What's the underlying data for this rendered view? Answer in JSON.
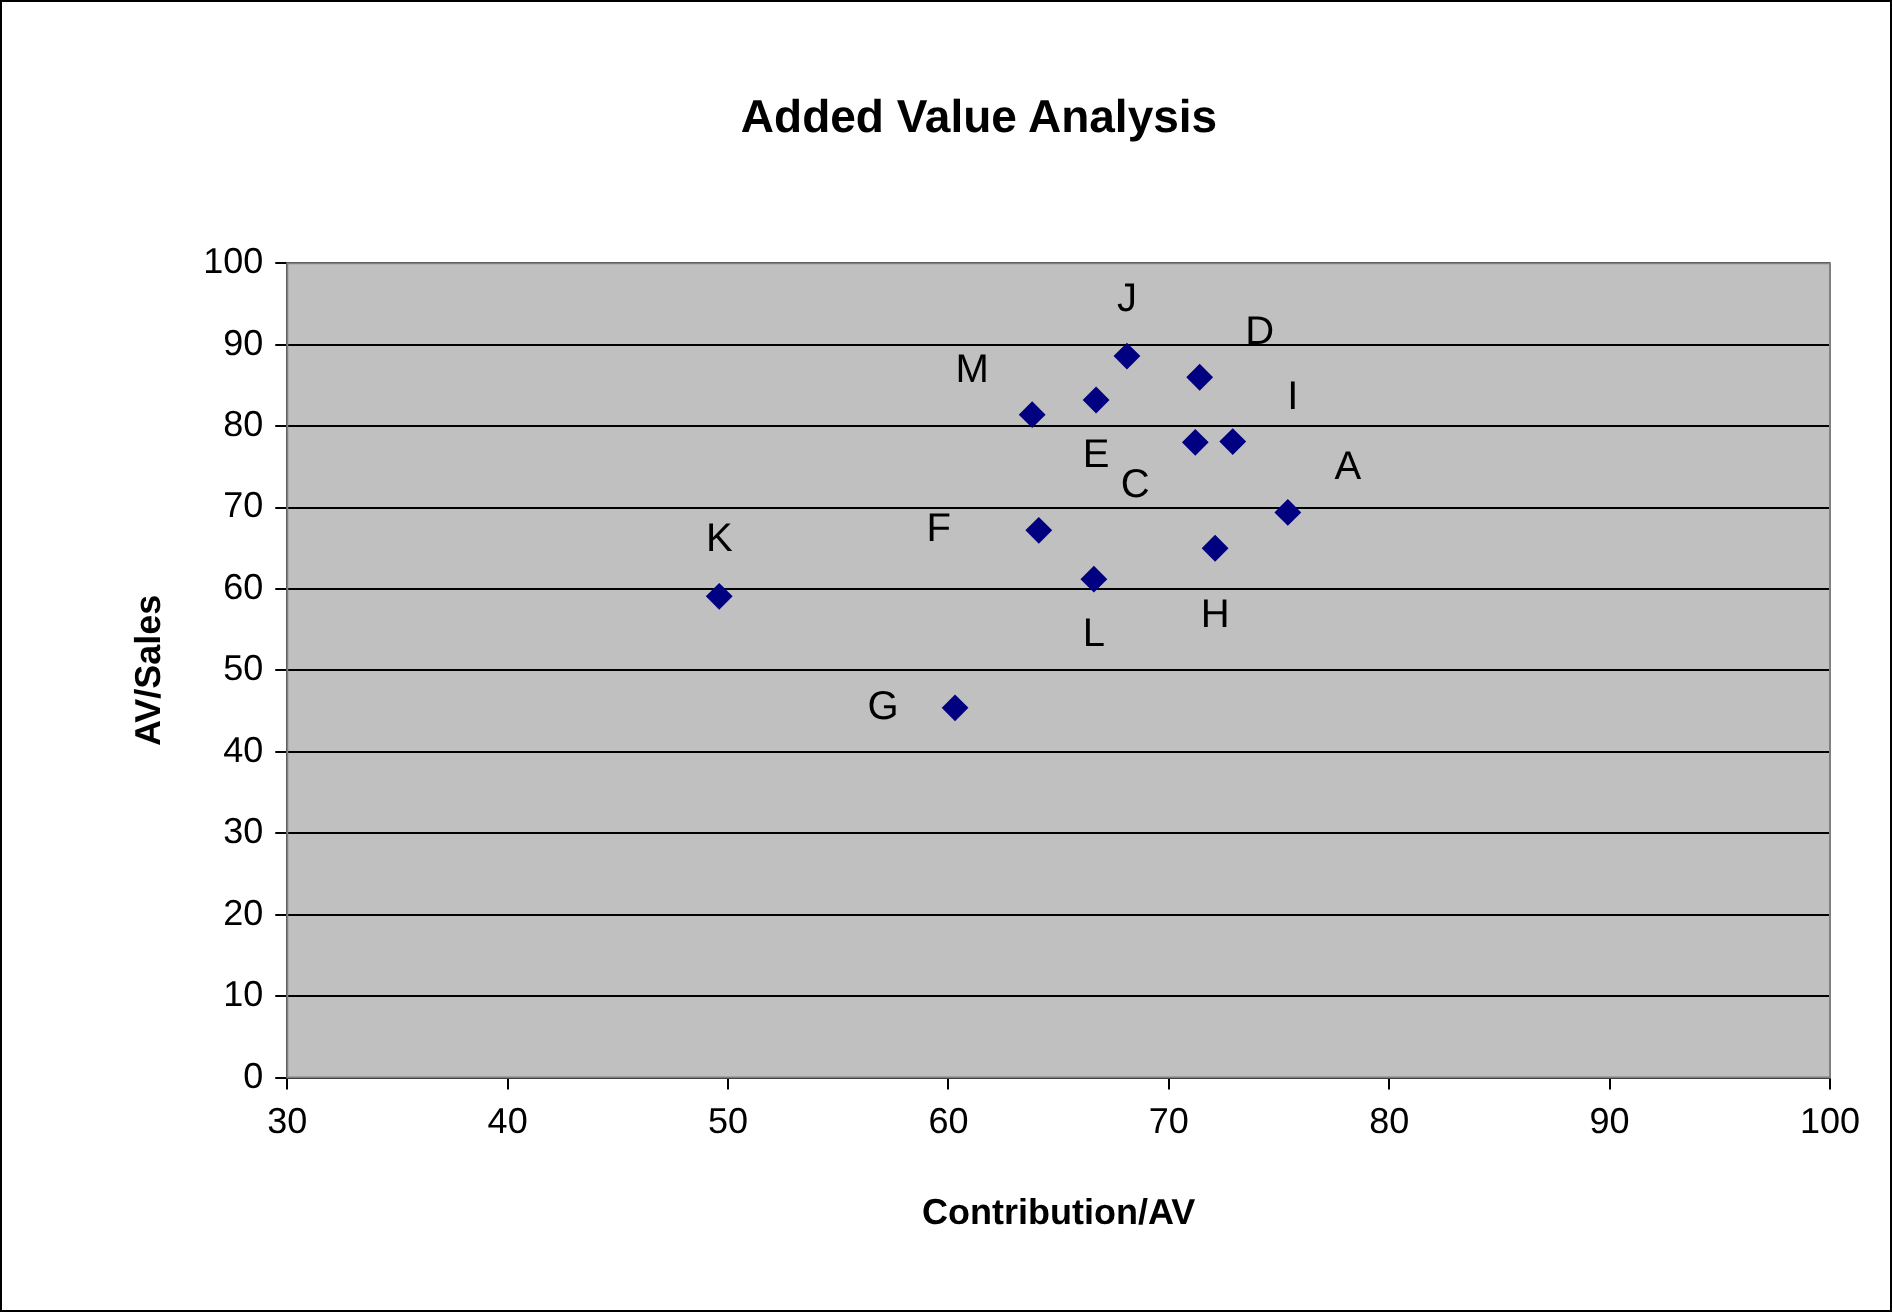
{
  "chart_data": {
    "type": "scatter",
    "title": "Added Value Analysis",
    "xlabel": "Contribution/AV",
    "ylabel": "AV/Sales",
    "x": [
      75.4,
      71.2,
      71.4,
      66.7,
      64.1,
      60.3,
      72.1,
      72.9,
      68.1,
      49.6,
      66.6,
      63.8
    ],
    "series": [
      {
        "color": "#000080",
        "values": [
          69.4,
          78.0,
          86.0,
          83.2,
          67.2,
          45.4,
          65.0,
          78.1,
          88.6,
          59.1,
          61.2,
          81.4
        ]
      }
    ],
    "xlim": [
      30,
      100
    ],
    "xticks": [
      30,
      40,
      50,
      60,
      70,
      80,
      90,
      100
    ],
    "ylim": [
      0,
      100
    ],
    "yticks": [
      0,
      10,
      20,
      30,
      40,
      50,
      60,
      70,
      80,
      90,
      100
    ],
    "grid": "y",
    "legend": false,
    "marker": "diamond",
    "annotations": [
      {
        "text": "A",
        "x": 75.4,
        "y": 69.4
      },
      {
        "text": "C",
        "x": 71.2,
        "y": 78.0
      },
      {
        "text": "D",
        "x": 71.4,
        "y": 86.0
      },
      {
        "text": "E",
        "x": 66.7,
        "y": 83.2
      },
      {
        "text": "F",
        "x": 64.1,
        "y": 67.2
      },
      {
        "text": "G",
        "x": 60.3,
        "y": 45.4
      },
      {
        "text": "H",
        "x": 72.1,
        "y": 65.0
      },
      {
        "text": "I",
        "x": 72.9,
        "y": 78.1
      },
      {
        "text": "J",
        "x": 68.1,
        "y": 88.6
      },
      {
        "text": "K",
        "x": 49.6,
        "y": 59.1
      },
      {
        "text": "L",
        "x": 66.6,
        "y": 61.2
      },
      {
        "text": "M",
        "x": 63.8,
        "y": 81.4
      }
    ]
  }
}
